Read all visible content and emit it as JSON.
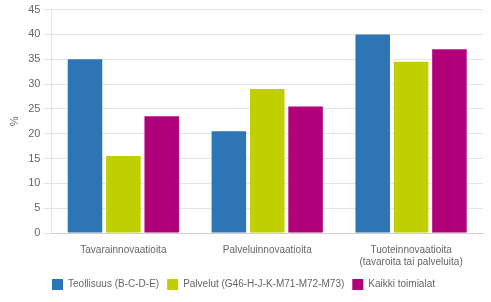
{
  "chart_data": {
    "type": "bar",
    "categories": [
      "Tavarainnovaatioita",
      "Palveluinnovaatioita",
      "Tuoteinnovaatioita\n(tavaroita tai palveluita)"
    ],
    "series": [
      {
        "name": "Teollisuus (B-C-D-E)",
        "values": [
          35.0,
          20.5,
          40.0
        ],
        "color": "#2E75B6"
      },
      {
        "name": "Palvelut (G46-H-J-K-M71-M72-M73)",
        "values": [
          15.5,
          29.0,
          34.5
        ],
        "color": "#BFCF00"
      },
      {
        "name": "Kaikki toimialat",
        "values": [
          23.5,
          25.5,
          37.0
        ],
        "color": "#B0007A"
      }
    ],
    "ylabel": "%",
    "ylim": [
      0,
      45
    ],
    "yticks": [
      0,
      5,
      10,
      15,
      20,
      25,
      30,
      35,
      40,
      45
    ],
    "grid": true,
    "legend": "bottom"
  }
}
